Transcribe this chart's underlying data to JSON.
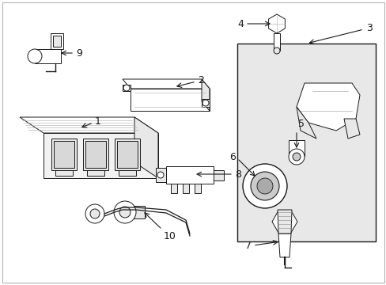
{
  "bg_color": "#ffffff",
  "line_color": "#1a1a1a",
  "box_bg_color": "#e0e0e0",
  "font_size": 9,
  "figsize": [
    4.89,
    3.6
  ],
  "dpi": 100
}
